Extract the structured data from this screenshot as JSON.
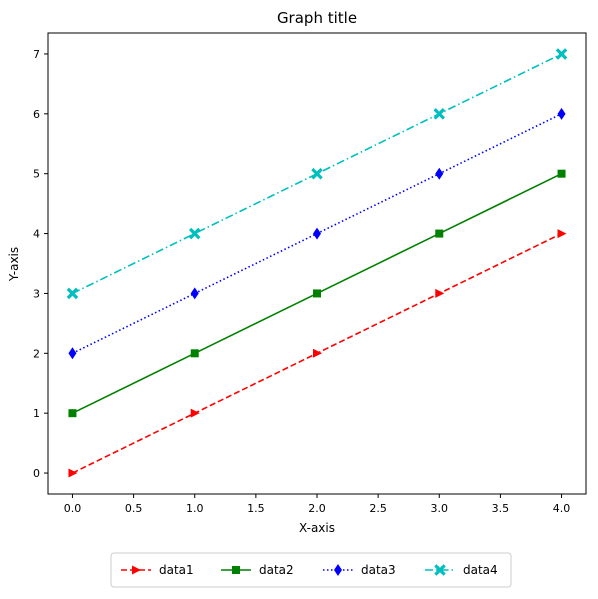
{
  "chart_data": {
    "type": "line",
    "title": "Graph title",
    "xlabel": "X-axis",
    "ylabel": "Y-axis",
    "xlim": [
      -0.2,
      4.2
    ],
    "ylim": [
      -0.35,
      7.35
    ],
    "xticks": [
      0.0,
      0.5,
      1.0,
      1.5,
      2.0,
      2.5,
      3.0,
      3.5,
      4.0
    ],
    "xtick_labels": [
      "0.0",
      "0.5",
      "1.0",
      "1.5",
      "2.0",
      "2.5",
      "3.0",
      "3.5",
      "4.0"
    ],
    "yticks": [
      0,
      1,
      2,
      3,
      4,
      5,
      6,
      7
    ],
    "ytick_labels": [
      "0",
      "1",
      "2",
      "3",
      "4",
      "5",
      "6",
      "7"
    ],
    "grid": false,
    "legend": {
      "position": "bottom-center",
      "columns": 4
    },
    "x": [
      0,
      1,
      2,
      3,
      4
    ],
    "series": [
      {
        "name": "data1",
        "values": [
          0,
          1,
          2,
          3,
          4
        ],
        "color": "#ff0000",
        "linestyle": "dashed",
        "marker": "triangle-right"
      },
      {
        "name": "data2",
        "values": [
          1,
          2,
          3,
          4,
          5
        ],
        "color": "#008000",
        "linestyle": "solid",
        "marker": "square"
      },
      {
        "name": "data3",
        "values": [
          2,
          3,
          4,
          5,
          6
        ],
        "color": "#0000ff",
        "linestyle": "dotted",
        "marker": "diamond"
      },
      {
        "name": "data4",
        "values": [
          3,
          4,
          5,
          6,
          7
        ],
        "color": "#00bfbf",
        "linestyle": "dashdot",
        "marker": "x"
      }
    ]
  }
}
